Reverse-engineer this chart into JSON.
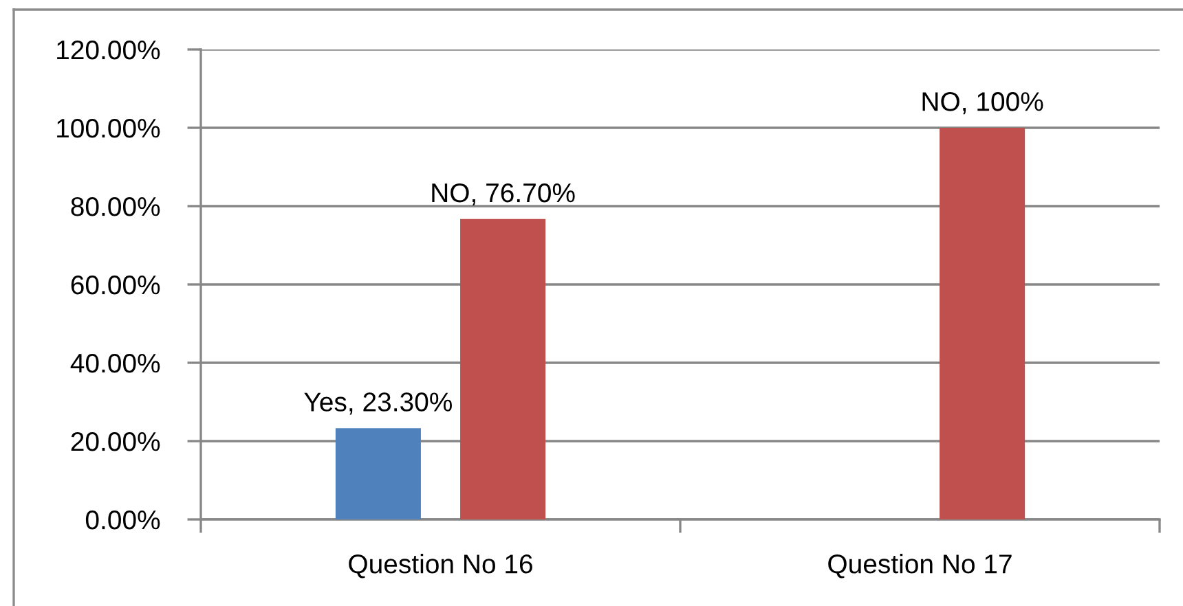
{
  "chart_data": {
    "type": "bar",
    "categories": [
      "Question No 16",
      "Question No 17"
    ],
    "series": [
      {
        "color": "#4f81bd",
        "values": [
          23.3,
          null
        ],
        "value_labels": [
          "Yes, 23.30%",
          null
        ]
      },
      {
        "color": "#c0504d",
        "values": [
          76.7,
          100
        ],
        "value_labels": [
          "NO, 76.70%",
          "NO, 100%"
        ]
      }
    ],
    "ylim": [
      0,
      120
    ],
    "yticks": [
      {
        "value": 0,
        "label": "0.00%"
      },
      {
        "value": 20,
        "label": "20.00%"
      },
      {
        "value": 40,
        "label": "40.00%"
      },
      {
        "value": 60,
        "label": "60.00%"
      },
      {
        "value": 80,
        "label": "80.00%"
      },
      {
        "value": 100,
        "label": "100.00%"
      },
      {
        "value": 120,
        "label": "120.00%"
      }
    ],
    "grid": "y"
  }
}
